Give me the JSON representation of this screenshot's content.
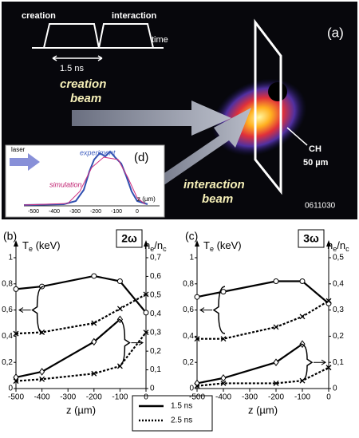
{
  "panel_a": {
    "label": "(a)",
    "pulse_labels": [
      "creation",
      "interaction"
    ],
    "time_label": "time",
    "duration": "1.5 ns",
    "creation_beam": [
      "creation",
      "beam"
    ],
    "interaction_beam": [
      "interaction",
      "beam"
    ],
    "target": [
      "CH",
      "50 µm"
    ],
    "code": "0611030",
    "inset": {
      "label": "(d)",
      "laser": "laser",
      "experiment": "experiment",
      "simulation": "simulation",
      "x_label": "z (µm)",
      "ticks": [
        "-500",
        "-400",
        "-300",
        "-200",
        "-100",
        "0"
      ]
    }
  },
  "legend": [
    {
      "name": "1.5 ns",
      "line": "solid"
    },
    {
      "name": "2.5 ns",
      "line": "dotted"
    }
  ],
  "chart_data": [
    {
      "type": "line",
      "panel": "(b)",
      "harmonic": "2ω",
      "x_label": "z (µm)",
      "y_label": [
        "T",
        "e",
        " (keV)"
      ],
      "y2_label": [
        "n",
        "e",
        "/n",
        "c"
      ],
      "x": [
        -500,
        -400,
        -200,
        -100,
        0
      ],
      "xlim": [
        -500,
        0
      ],
      "xticks": [
        -500,
        -400,
        -300,
        -200,
        -100,
        0
      ],
      "ylim": [
        0,
        1
      ],
      "yticks": [
        0,
        {
          "value": 0.2,
          "label": "0,2"
        },
        {
          "value": 0.4,
          "label": "0,4"
        },
        {
          "value": 0.6,
          "label": "0,6"
        },
        {
          "value": 0.8,
          "label": "0,8"
        },
        1
      ],
      "y2lim": [
        0,
        0.7
      ],
      "y2ticks": [
        0,
        {
          "value": 0.1,
          "label": "0,1"
        },
        {
          "value": 0.2,
          "label": "0,2"
        },
        {
          "value": 0.3,
          "label": "0,3"
        },
        {
          "value": 0.4,
          "label": "0,4"
        },
        {
          "value": 0.5,
          "label": "0,5"
        },
        {
          "value": 0.6,
          "label": "0,6"
        },
        {
          "value": 0.7,
          "label": "0,7"
        }
      ],
      "series": [
        {
          "line": "solid",
          "marker": "circle",
          "values": [
            0.76,
            0.78,
            0.86,
            0.82,
            0.58
          ]
        },
        {
          "line": "dotted",
          "marker": "x",
          "values": [
            0.42,
            0.43,
            0.5,
            0.61,
            0.72
          ]
        },
        {
          "line": "solid",
          "marker": "diamond",
          "axis": "y2",
          "values": [
            0.06,
            0.09,
            0.25,
            0.37,
            null
          ]
        },
        {
          "line": "dotted",
          "marker": "x",
          "axis": "y2",
          "values": [
            0.04,
            0.05,
            0.08,
            0.12,
            0.3
          ]
        }
      ]
    },
    {
      "type": "line",
      "panel": "(c)",
      "harmonic": "3ω",
      "x_label": "z (µm)",
      "y_label": [
        "T",
        "e",
        " (keV)"
      ],
      "y2_label": [
        "n",
        "e",
        "/n",
        "c"
      ],
      "x": [
        -500,
        -400,
        -200,
        -100,
        0
      ],
      "xlim": [
        -500,
        0
      ],
      "xticks": [
        -500,
        -400,
        -300,
        -200,
        -100,
        0
      ],
      "ylim": [
        0,
        1
      ],
      "yticks": [
        0,
        {
          "value": 0.2,
          "label": "0,2"
        },
        {
          "value": 0.4,
          "label": "0,4"
        },
        {
          "value": 0.6,
          "label": "0,6"
        },
        {
          "value": 0.8,
          "label": "0,8"
        },
        1
      ],
      "y2lim": [
        0,
        0.5
      ],
      "y2ticks": [
        0,
        {
          "value": 0.1,
          "label": "0,1"
        },
        {
          "value": 0.2,
          "label": "0,2"
        },
        {
          "value": 0.3,
          "label": "0,3"
        },
        {
          "value": 0.4,
          "label": "0,4"
        },
        {
          "value": 0.5,
          "label": "0,5"
        }
      ],
      "series": [
        {
          "line": "solid",
          "marker": "circle",
          "values": [
            0.7,
            0.74,
            0.82,
            0.82,
            0.65
          ]
        },
        {
          "line": "dotted",
          "marker": "x",
          "values": [
            0.38,
            0.38,
            0.47,
            0.55,
            0.67
          ]
        },
        {
          "line": "solid",
          "marker": "diamond",
          "axis": "y2",
          "values": [
            0.02,
            0.04,
            0.1,
            0.17,
            null
          ]
        },
        {
          "line": "dotted",
          "marker": "x",
          "axis": "y2",
          "values": [
            0.01,
            0.02,
            0.02,
            0.03,
            0.08
          ]
        }
      ]
    }
  ]
}
